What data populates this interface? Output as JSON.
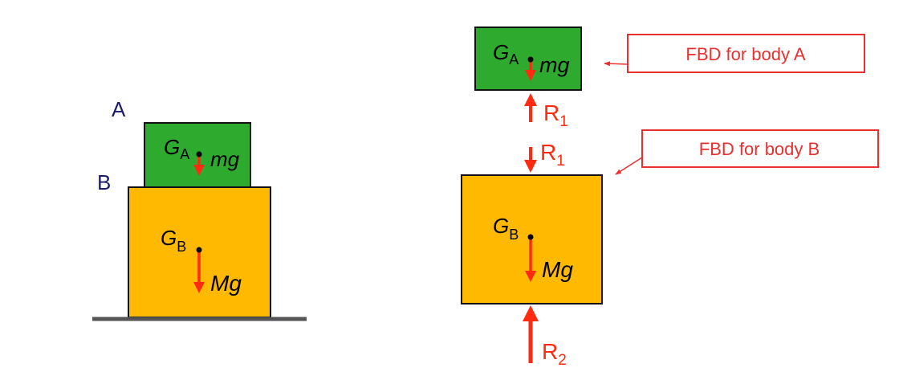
{
  "colors": {
    "body_a": "#2eaa2e",
    "body_b": "#ffb900",
    "force": "#ff2a10",
    "label_text": "#1c1c6e",
    "ground": "#555555",
    "callout": "#e83030"
  },
  "left": {
    "label_a": "A",
    "label_b": "B",
    "body_a": {
      "g_label": "G",
      "g_sub": "A",
      "force": "mg"
    },
    "body_b": {
      "g_label": "G",
      "g_sub": "B",
      "force": "Mg"
    }
  },
  "right": {
    "body_a": {
      "g_label": "G",
      "g_sub": "A",
      "force": "mg",
      "reaction": "R",
      "reaction_sub": "1"
    },
    "body_b": {
      "g_label": "G",
      "g_sub": "B",
      "force": "Mg",
      "reaction_top": "R",
      "reaction_top_sub": "1",
      "reaction_bottom": "R",
      "reaction_bottom_sub": "2"
    },
    "callout_a": "FBD for body A",
    "callout_b": "FBD for body B"
  }
}
